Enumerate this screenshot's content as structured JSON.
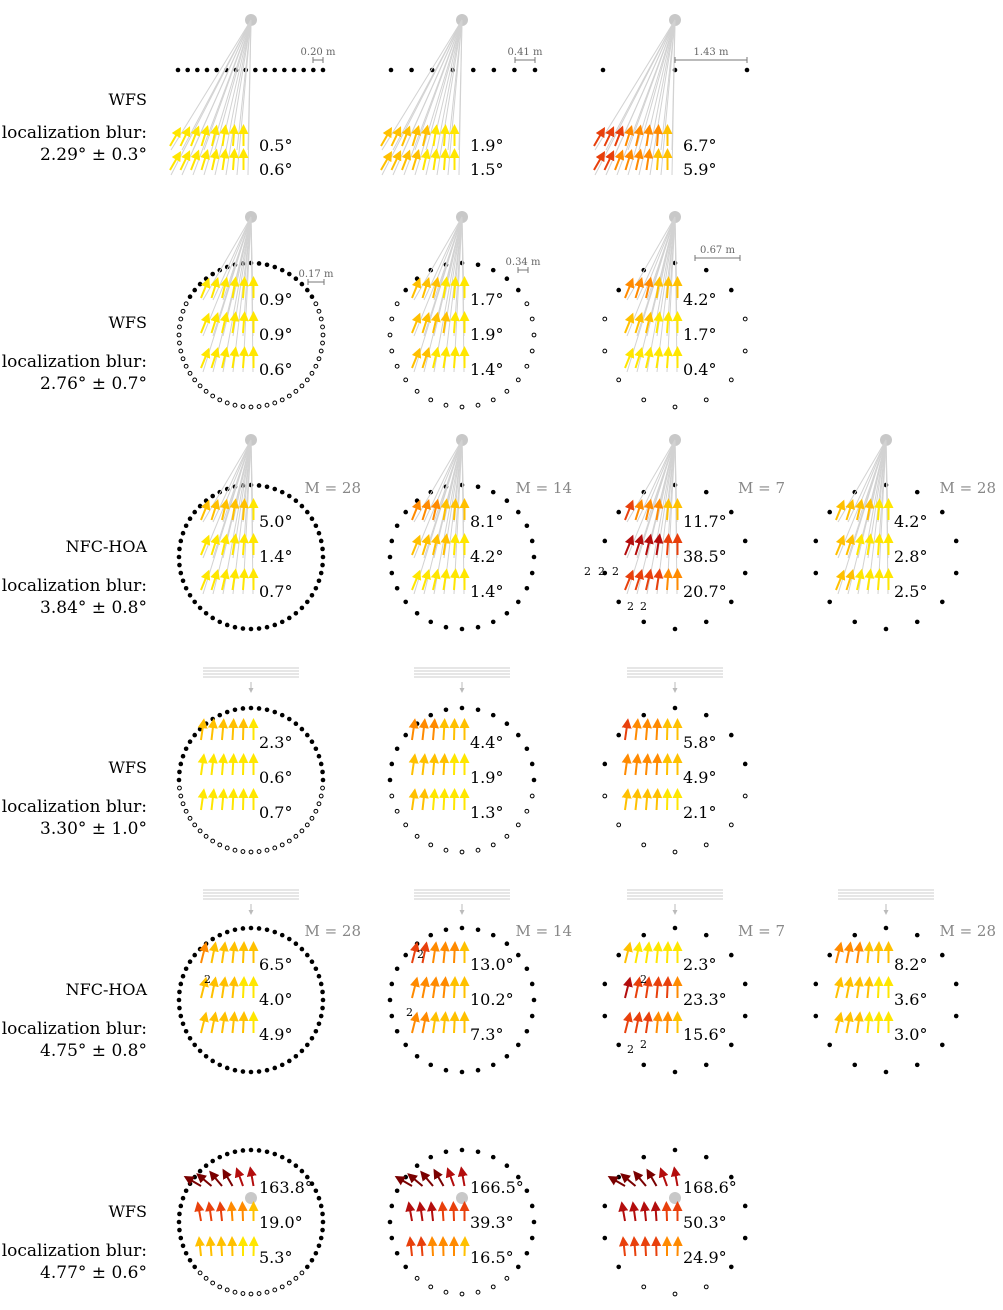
{
  "rows": [
    {
      "method": "WFS",
      "blur_label": "localization blur:",
      "blur_value": "2.29° ± 0.3°",
      "panels": [
        {
          "readouts": [
            "0.5°",
            "0.6°"
          ],
          "spacing": "0.20 m",
          "M": ""
        },
        {
          "readouts": [
            "1.9°",
            "1.5°"
          ],
          "spacing": "0.41 m",
          "M": ""
        },
        {
          "readouts": [
            "6.7°",
            "5.9°"
          ],
          "spacing": "1.43 m",
          "M": ""
        }
      ]
    },
    {
      "method": "WFS",
      "blur_label": "localization blur:",
      "blur_value": "2.76° ± 0.7°",
      "panels": [
        {
          "readouts": [
            "0.9°",
            "0.9°",
            "0.6°"
          ],
          "spacing": "0.17 m",
          "M": ""
        },
        {
          "readouts": [
            "1.7°",
            "1.9°",
            "1.4°"
          ],
          "spacing": "0.34 m",
          "M": ""
        },
        {
          "readouts": [
            "4.2°",
            "1.7°",
            "0.4°"
          ],
          "spacing": "0.67 m",
          "M": ""
        }
      ]
    },
    {
      "method": "NFC-HOA",
      "blur_label": "localization blur:",
      "blur_value": "3.84° ± 0.8°",
      "panels": [
        {
          "readouts": [
            "5.0°",
            "1.4°",
            "0.7°"
          ],
          "spacing": "",
          "M": "M = 28"
        },
        {
          "readouts": [
            "8.1°",
            "4.2°",
            "1.4°"
          ],
          "spacing": "",
          "M": "M = 14"
        },
        {
          "readouts": [
            "11.7°",
            "38.5°",
            "20.7°"
          ],
          "spacing": "",
          "M": "M = 7"
        },
        {
          "readouts": [
            "4.2°",
            "2.8°",
            "2.5°"
          ],
          "spacing": "",
          "M": "M = 28"
        }
      ]
    },
    {
      "method": "WFS",
      "blur_label": "localization blur:",
      "blur_value": "3.30° ± 1.0°",
      "panels": [
        {
          "readouts": [
            "2.3°",
            "0.6°",
            "0.7°"
          ],
          "spacing": "",
          "M": ""
        },
        {
          "readouts": [
            "4.4°",
            "1.9°",
            "1.3°"
          ],
          "spacing": "",
          "M": ""
        },
        {
          "readouts": [
            "5.8°",
            "4.9°",
            "2.1°"
          ],
          "spacing": "",
          "M": ""
        }
      ]
    },
    {
      "method": "NFC-HOA",
      "blur_label": "localization blur:",
      "blur_value": "4.75° ± 0.8°",
      "panels": [
        {
          "readouts": [
            "6.5°",
            "4.0°",
            "4.9°"
          ],
          "spacing": "",
          "M": "M = 28"
        },
        {
          "readouts": [
            "13.0°",
            "10.2°",
            "7.3°"
          ],
          "spacing": "",
          "M": "M = 14"
        },
        {
          "readouts": [
            "2.3°",
            "23.3°",
            "15.6°"
          ],
          "spacing": "",
          "M": "M = 7"
        },
        {
          "readouts": [
            "8.2°",
            "3.6°",
            "3.0°"
          ],
          "spacing": "",
          "M": "M = 28"
        }
      ]
    },
    {
      "method": "WFS",
      "blur_label": "localization blur:",
      "blur_value": "4.77° ± 0.6°",
      "panels": [
        {
          "readouts": [
            "163.8°",
            "19.0°",
            "5.3°"
          ],
          "spacing": "",
          "M": ""
        },
        {
          "readouts": [
            "166.5°",
            "39.3°",
            "16.5°"
          ],
          "spacing": "",
          "M": ""
        },
        {
          "readouts": [
            "168.6°",
            "50.3°",
            "24.9°"
          ],
          "spacing": "",
          "M": ""
        }
      ]
    }
  ],
  "multiplicity_marker": "2",
  "colors": {
    "low": "#ffe600",
    "midlow": "#ffc000",
    "mid": "#ff8a00",
    "high": "#e8400c",
    "veryhigh": "#b30d0d",
    "extreme": "#7a0000",
    "source": "#c8c8c8",
    "ray": "#d2d2d2",
    "speaker": "#000000"
  }
}
